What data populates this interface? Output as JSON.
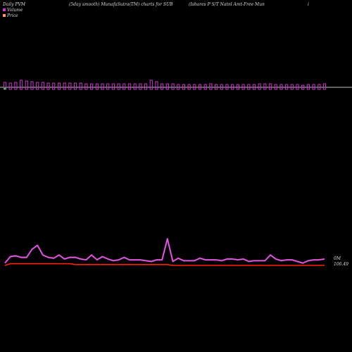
{
  "header": {
    "left": "Daily PVM",
    "center_left": "(5day smooth) MunafaSutra(TM) charts for SUB",
    "center_right": "(Ishares P S/T Natnl Amt-Free   Mun",
    "right": "i"
  },
  "legend": [
    {
      "label": "Volume",
      "color": "#cc33cc"
    },
    {
      "label": "Price",
      "color": "#ff9966"
    }
  ],
  "colors": {
    "background": "#000000",
    "volume_bar": "#cc33cc",
    "volume_bar_special": "#33cc33",
    "pvm_line": "#cc33cc",
    "price_line": "#ff2200",
    "baseline": "#ffffff"
  },
  "chart_data": {
    "type": "line",
    "title": "Daily PVM",
    "x": [
      1,
      2,
      3,
      4,
      5,
      6,
      7,
      8,
      9,
      10,
      11,
      12,
      13,
      14,
      15,
      16,
      17,
      18,
      19,
      20,
      21,
      22,
      23,
      24,
      25,
      26,
      27,
      28,
      29,
      30,
      31,
      32,
      33,
      34,
      35,
      36,
      37,
      38,
      39,
      40,
      41,
      42,
      43,
      44,
      45,
      46,
      47,
      48,
      49,
      50,
      51,
      52,
      53,
      54,
      55,
      56,
      57,
      58,
      59,
      60
    ],
    "series": [
      {
        "name": "Volume",
        "values": [
          7,
          6,
          7,
          10,
          9,
          8,
          7,
          7,
          6,
          6,
          6,
          6,
          6,
          6,
          6,
          5,
          5,
          5,
          5,
          5,
          5,
          5,
          5,
          5,
          5,
          5,
          5,
          10,
          8,
          5,
          5,
          5,
          4,
          4,
          4,
          4,
          4,
          4,
          5,
          4,
          4,
          4,
          4,
          4,
          4,
          4,
          4,
          5,
          5,
          5,
          4,
          4,
          4,
          4,
          4,
          3,
          4,
          4,
          4,
          5
        ]
      },
      {
        "name": "PVM",
        "values": [
          2,
          10,
          11,
          9,
          9,
          19,
          24,
          12,
          9,
          8,
          12,
          7,
          9,
          9,
          7,
          6,
          12,
          6,
          10,
          7,
          5,
          6,
          9,
          6,
          6,
          6,
          5,
          4,
          6,
          6,
          32,
          4,
          8,
          5,
          5,
          5,
          8,
          6,
          6,
          6,
          5,
          7,
          7,
          6,
          7,
          4,
          5,
          5,
          5,
          12,
          7,
          5,
          6,
          6,
          4,
          2,
          5,
          6,
          6,
          7
        ]
      },
      {
        "name": "Price",
        "values": [
          0,
          2,
          2,
          2,
          2,
          2,
          2,
          2,
          2,
          2,
          2,
          2,
          2,
          1,
          1,
          1,
          1,
          1,
          1,
          1,
          1,
          1,
          1,
          1,
          1,
          1,
          1,
          1,
          1,
          1,
          1,
          0,
          0,
          0,
          0,
          0,
          0,
          0,
          0,
          0,
          0,
          0,
          0,
          0,
          0,
          0,
          0,
          0,
          0,
          0,
          0,
          0,
          0,
          0,
          0,
          0,
          0,
          0,
          0,
          0
        ]
      }
    ],
    "volume_label": "0M",
    "price_label": "106.49",
    "special_bar_index": 0
  }
}
